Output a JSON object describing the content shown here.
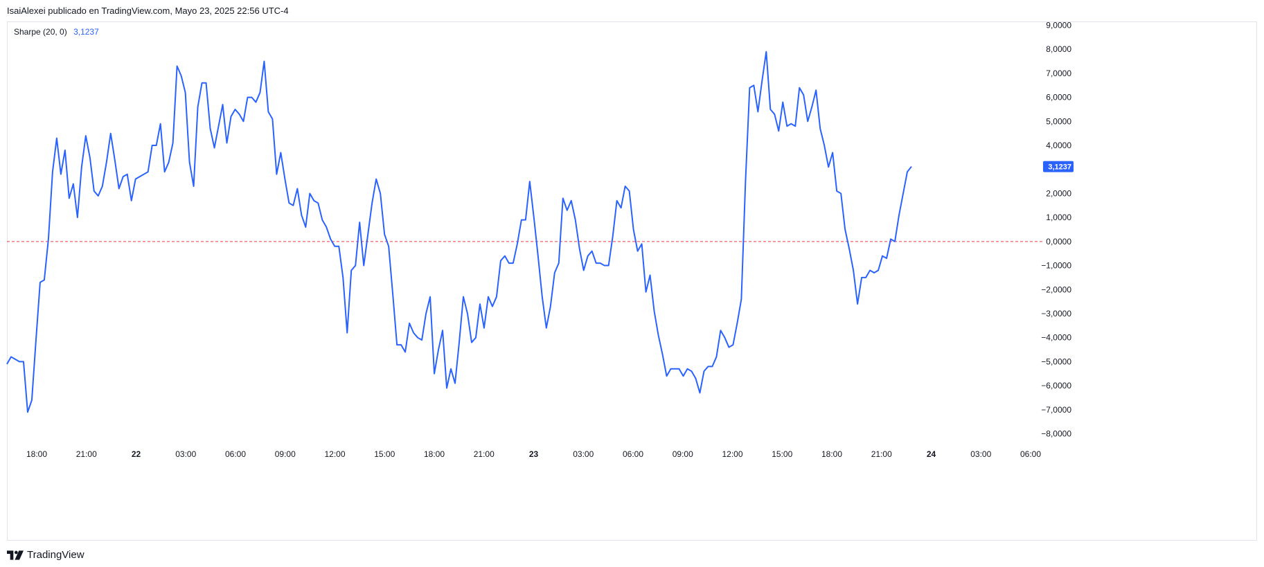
{
  "header": {
    "publisher_text": "IsaiAlexei publicado en TradingView.com, Mayo 23, 2025 22:56 UTC-4"
  },
  "legend": {
    "name": "Sharpe (20, 0)",
    "value": "3,1237"
  },
  "footer": {
    "brand": "TradingView",
    "logo_icon": "tradingview-logo-icon"
  },
  "colors": {
    "line": "#2962ff",
    "zero_line": "#f23645",
    "price_label_bg": "#2962ff",
    "axis_text": "#131722",
    "frame": "#e0e3eb"
  },
  "chart_data": {
    "type": "line",
    "series": [
      {
        "name": "Sharpe (20, 0)",
        "last_value_label": "3,1237",
        "values": [
          -5.1,
          -4.8,
          -4.9,
          -5.0,
          -5.0,
          -7.1,
          -6.6,
          -4.1,
          -1.7,
          -1.6,
          0.1,
          2.9,
          4.3,
          2.8,
          3.8,
          1.8,
          2.4,
          1.0,
          3.1,
          4.4,
          3.5,
          2.1,
          1.9,
          2.3,
          3.3,
          4.5,
          3.4,
          2.2,
          2.7,
          2.8,
          1.7,
          2.6,
          2.7,
          2.8,
          2.9,
          4.0,
          4.0,
          4.9,
          2.9,
          3.3,
          4.1,
          7.3,
          6.9,
          6.2,
          3.3,
          2.3,
          5.6,
          6.6,
          6.6,
          4.7,
          3.9,
          4.8,
          5.7,
          4.1,
          5.2,
          5.5,
          5.3,
          5.0,
          6.0,
          6.0,
          5.8,
          6.2,
          7.5,
          5.4,
          5.1,
          2.8,
          3.7,
          2.6,
          1.6,
          1.5,
          2.2,
          1.1,
          0.6,
          2.0,
          1.7,
          1.6,
          0.9,
          0.6,
          0.1,
          -0.2,
          -0.2,
          -1.5,
          -3.8,
          -1.2,
          -1.0,
          0.8,
          -1.0,
          0.3,
          1.6,
          2.6,
          2.0,
          0.3,
          -0.2,
          -2.2,
          -4.3,
          -4.3,
          -4.6,
          -3.4,
          -3.8,
          -4.0,
          -4.1,
          -3.0,
          -2.3,
          -5.5,
          -4.5,
          -3.7,
          -6.1,
          -5.3,
          -5.9,
          -4.2,
          -2.3,
          -3.0,
          -4.2,
          -4.0,
          -2.6,
          -3.6,
          -2.3,
          -2.7,
          -2.3,
          -0.8,
          -0.6,
          -0.9,
          -0.9,
          -0.1,
          0.9,
          0.9,
          2.5,
          1.0,
          -0.6,
          -2.3,
          -3.6,
          -2.7,
          -1.3,
          -0.9,
          1.8,
          1.3,
          1.7,
          0.9,
          -0.3,
          -1.2,
          -0.6,
          -0.4,
          -0.9,
          -0.9,
          -1.0,
          -1.0,
          0.2,
          1.7,
          1.4,
          2.3,
          2.1,
          0.5,
          -0.4,
          -0.1,
          -2.1,
          -1.4,
          -2.9,
          -3.9,
          -4.7,
          -5.6,
          -5.3,
          -5.3,
          -5.3,
          -5.6,
          -5.3,
          -5.4,
          -5.7,
          -6.3,
          -5.4,
          -5.2,
          -5.2,
          -4.8,
          -3.7,
          -4.0,
          -4.4,
          -4.3,
          -3.4,
          -2.4,
          2.5,
          6.4,
          6.5,
          5.4,
          6.7,
          7.9,
          5.5,
          5.3,
          4.6,
          5.8,
          4.8,
          4.9,
          4.8,
          6.4,
          6.1,
          5.0,
          5.6,
          6.3,
          4.7,
          4.0,
          3.1,
          3.7,
          2.1,
          2.0,
          0.5,
          -0.3,
          -1.2,
          -2.6,
          -1.5,
          -1.5,
          -1.2,
          -1.3,
          -1.2,
          -0.6,
          -0.7,
          0.1,
          0.0,
          1.1,
          2.0,
          2.9,
          3.12
        ]
      }
    ],
    "x_ticks": [
      {
        "label": "18:00",
        "bold": false
      },
      {
        "label": "21:00",
        "bold": false
      },
      {
        "label": "22",
        "bold": true
      },
      {
        "label": "03:00",
        "bold": false
      },
      {
        "label": "06:00",
        "bold": false
      },
      {
        "label": "09:00",
        "bold": false
      },
      {
        "label": "12:00",
        "bold": false
      },
      {
        "label": "15:00",
        "bold": false
      },
      {
        "label": "18:00",
        "bold": false
      },
      {
        "label": "21:00",
        "bold": false
      },
      {
        "label": "23",
        "bold": true
      },
      {
        "label": "03:00",
        "bold": false
      },
      {
        "label": "06:00",
        "bold": false
      },
      {
        "label": "09:00",
        "bold": false
      },
      {
        "label": "12:00",
        "bold": false
      },
      {
        "label": "15:00",
        "bold": false
      },
      {
        "label": "18:00",
        "bold": false
      },
      {
        "label": "21:00",
        "bold": false
      },
      {
        "label": "24",
        "bold": true
      },
      {
        "label": "03:00",
        "bold": false
      },
      {
        "label": "06:00",
        "bold": false
      }
    ],
    "y_ticks": [
      {
        "value": 9,
        "label": "9,0000"
      },
      {
        "value": 8,
        "label": "8,0000"
      },
      {
        "value": 7,
        "label": "7,0000"
      },
      {
        "value": 6,
        "label": "6,0000"
      },
      {
        "value": 5,
        "label": "5,0000"
      },
      {
        "value": 4,
        "label": "4,0000"
      },
      {
        "value": 2,
        "label": "2,0000"
      },
      {
        "value": 1,
        "label": "1,0000"
      },
      {
        "value": 0,
        "label": "0,0000"
      },
      {
        "value": -1,
        "label": "−1,0000"
      },
      {
        "value": -2,
        "label": "−2,0000"
      },
      {
        "value": -3,
        "label": "−3,0000"
      },
      {
        "value": -4,
        "label": "−4,0000"
      },
      {
        "value": -5,
        "label": "−5,0000"
      },
      {
        "value": -6,
        "label": "−6,0000"
      },
      {
        "value": -7,
        "label": "−7,0000"
      },
      {
        "value": -8,
        "label": "−8,0000"
      }
    ],
    "ylim": [
      -8,
      9
    ],
    "reference_line": {
      "value": 0,
      "style": "dashed"
    },
    "grid": false
  }
}
